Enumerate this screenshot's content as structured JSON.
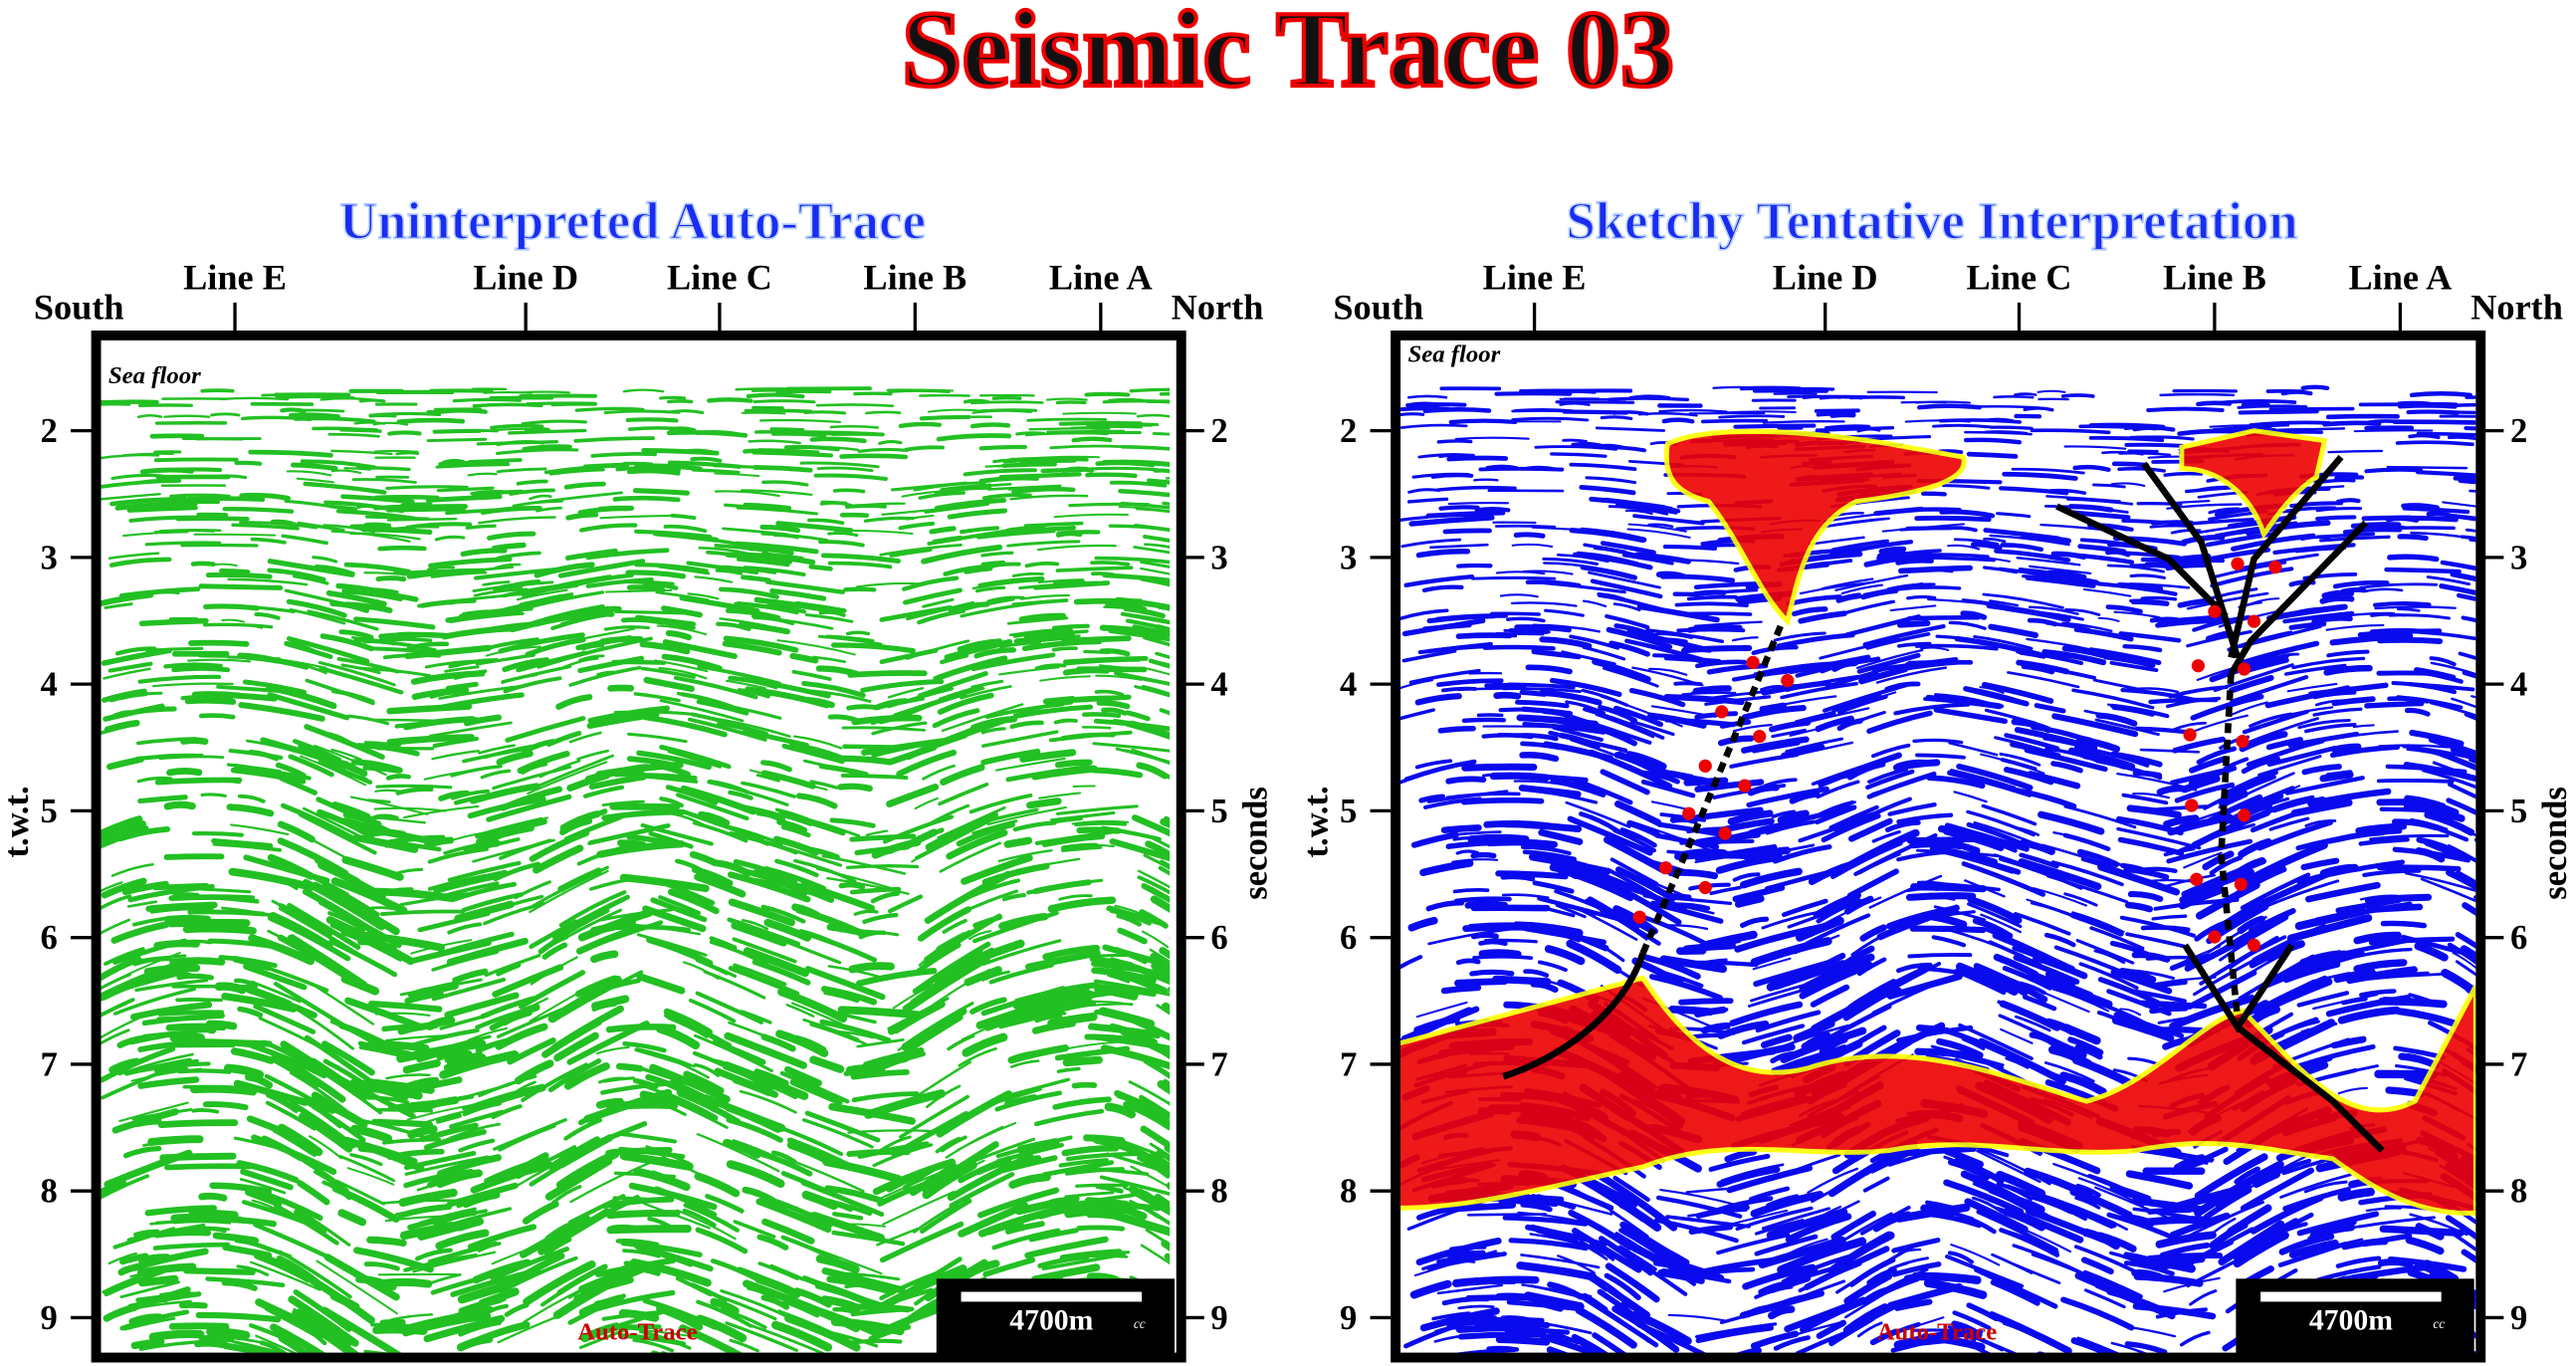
{
  "title": "Seismic Trace 03",
  "panels": [
    {
      "heading": "Uninterpreted Auto-Trace",
      "lines": [
        "Line E",
        "Line D",
        "Line C",
        "Line B",
        "Line A"
      ],
      "south": "South",
      "north": "North",
      "y_ticks": [
        2,
        3,
        4,
        5,
        6,
        7,
        8,
        9
      ],
      "y_label_left": "t.w.t.",
      "y_label_right": "seconds",
      "sea_floor": "Sea floor",
      "scale_bar": "4700m",
      "credit": "cc",
      "footer": "Auto-Trace"
    },
    {
      "heading": "Sketchy Tentative Interpretation",
      "lines": [
        "Line E",
        "Line D",
        "Line C",
        "Line B",
        "Line A"
      ],
      "south": "South",
      "north": "North",
      "y_ticks": [
        2,
        3,
        4,
        5,
        6,
        7,
        8,
        9
      ],
      "y_label_left": "t.w.t.",
      "y_label_right": "seconds",
      "sea_floor": "Sea floor",
      "scale_bar": "4700m",
      "credit": "cc",
      "footer": "Auto-Trace"
    }
  ]
}
